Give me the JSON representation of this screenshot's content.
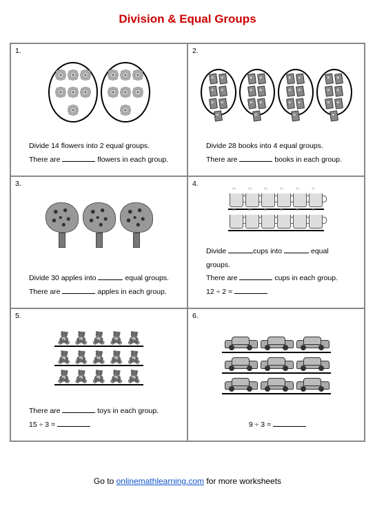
{
  "title": {
    "text": "Division & Equal Groups",
    "color": "#cc0000"
  },
  "cells": [
    {
      "num": "1.",
      "line1_a": "Divide 14 flowers into 2 equal groups.",
      "line2_a": "There are",
      "line2_b": "flowers in each group."
    },
    {
      "num": "2.",
      "line1_a": "Divide 28 books into 4 equal groups.",
      "line2_a": "There are",
      "line2_b": "books in each group."
    },
    {
      "num": "3.",
      "line1_a": "Divide 30 apples into",
      "line1_b": "equal groups.",
      "line2_a": "There are",
      "line2_b": "apples in each group."
    },
    {
      "num": "4.",
      "line1_a": "Divide",
      "line1_b": "cups into",
      "line1_c": "equal groups.",
      "line2_a": "There are",
      "line2_b": "cups in each group.",
      "line3_a": "12 ÷ 2  ="
    },
    {
      "num": "5.",
      "line2_a": "There are",
      "line2_b": "toys in each group.",
      "line3_a": "15 ÷ 3  ="
    },
    {
      "num": "6.",
      "line3_a": "9 ÷ 3  ="
    }
  ],
  "footer": {
    "prefix": "Go to ",
    "link": "onlinemathlearning.com",
    "suffix": " for more worksheets"
  }
}
